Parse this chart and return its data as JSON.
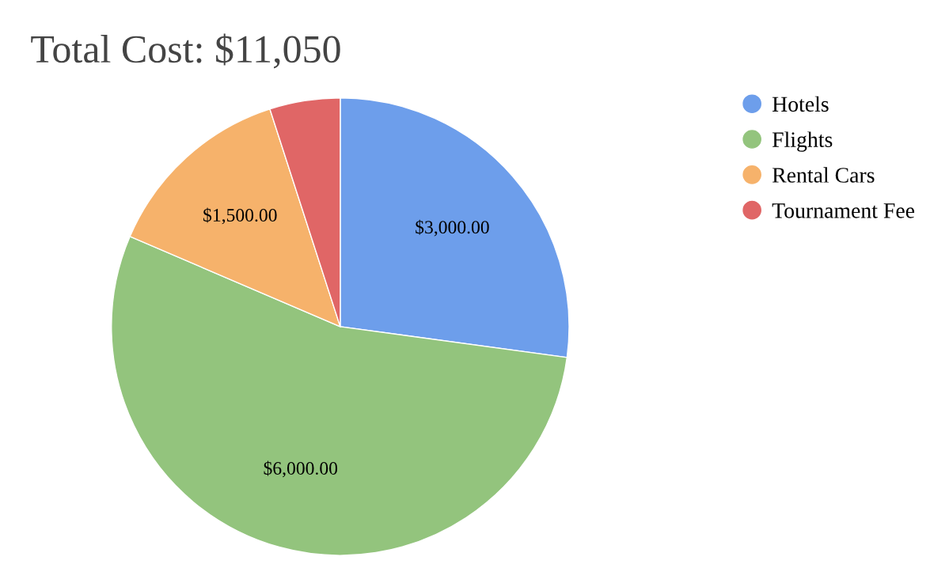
{
  "chart_data": {
    "type": "pie",
    "title": "Total Cost: $11,050",
    "categories": [
      "Hotels",
      "Flights",
      "Rental Cars",
      "Tournament Fee"
    ],
    "values": [
      3000,
      6000,
      1500,
      550
    ],
    "colors": [
      "#6d9eeb",
      "#93c47d",
      "#f6b26b",
      "#e06666"
    ],
    "value_labels": [
      "$3,000.00",
      "$6,000.00",
      "$1,500.00",
      null
    ],
    "legend": "top right"
  }
}
